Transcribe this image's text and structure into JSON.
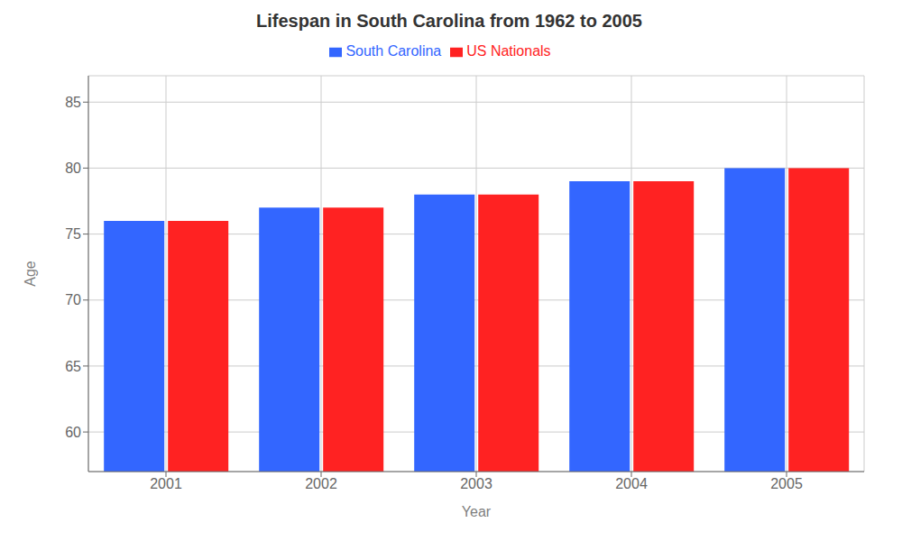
{
  "chart_data": {
    "type": "bar",
    "title": "Lifespan in South Carolina from 1962 to 2005",
    "xlabel": "Year",
    "ylabel": "Age",
    "categories": [
      "2001",
      "2002",
      "2003",
      "2004",
      "2005"
    ],
    "series": [
      {
        "name": "South Carolina",
        "color": "#3366ff",
        "values": [
          76.0,
          77.0,
          78.0,
          79.0,
          80.0
        ]
      },
      {
        "name": "US Nationals",
        "color": "#ff2222",
        "values": [
          76.0,
          77.0,
          78.0,
          79.0,
          80.0
        ]
      }
    ],
    "ylim": [
      57,
      87
    ],
    "yticks": [
      60,
      65,
      70,
      75,
      80,
      85
    ],
    "grid": true,
    "legend": "top"
  }
}
